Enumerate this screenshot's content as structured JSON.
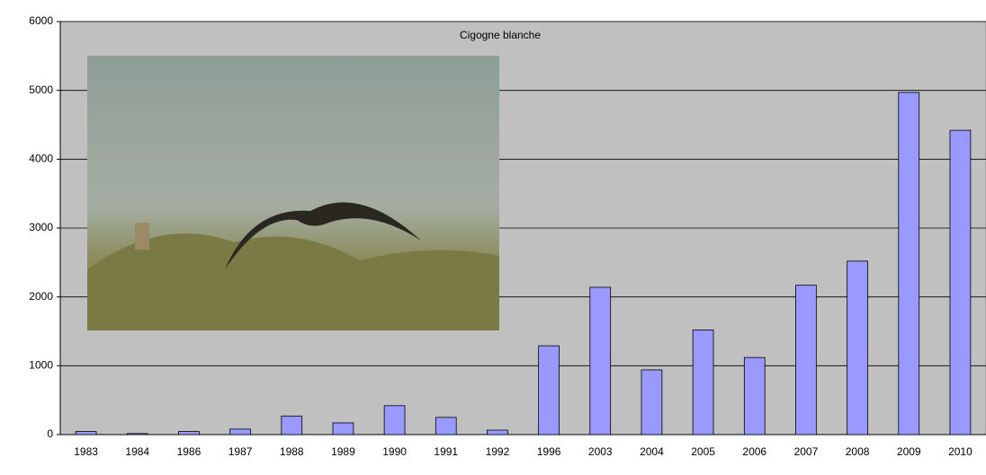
{
  "chart_data": {
    "type": "bar",
    "title": "Cigogne blanche",
    "categories": [
      "1983",
      "1984",
      "1986",
      "1987",
      "1988",
      "1989",
      "1990",
      "1991",
      "1992",
      "1996",
      "2003",
      "2004",
      "2005",
      "2006",
      "2007",
      "2008",
      "2009",
      "2010"
    ],
    "values": [
      45,
      15,
      45,
      80,
      270,
      170,
      420,
      250,
      65,
      1290,
      2140,
      940,
      1520,
      1120,
      2170,
      2520,
      4970,
      4420
    ],
    "color": "#9999ff",
    "ylim": [
      0,
      6000
    ],
    "yticks": [
      0,
      1000,
      2000,
      3000,
      4000,
      5000,
      6000
    ],
    "grid": true
  }
}
